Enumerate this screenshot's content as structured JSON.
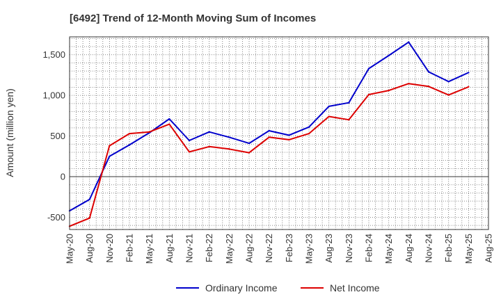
{
  "chart_data": {
    "type": "line",
    "title": "[6492]  Trend of 12-Month Moving Sum of Incomes",
    "xlabel": "",
    "ylabel": "Amount (million yen)",
    "ylim": [
      -650,
      1720
    ],
    "yticks": [
      -500,
      0,
      500,
      1000,
      1500
    ],
    "ytick_labels": [
      "-500",
      "0",
      "500",
      "1,000",
      "1,500"
    ],
    "categories": [
      "May-20",
      "Aug-20",
      "Nov-20",
      "Feb-21",
      "May-21",
      "Aug-21",
      "Nov-21",
      "Feb-22",
      "May-22",
      "Aug-22",
      "Nov-22",
      "Feb-23",
      "May-23",
      "Aug-23",
      "Nov-23",
      "Feb-24",
      "May-24",
      "Aug-24",
      "Nov-24",
      "Feb-25",
      "May-25",
      "Aug-25"
    ],
    "series": [
      {
        "name": "Ordinary Income",
        "color": "#0000cc",
        "values": [
          -420,
          -280,
          250,
          390,
          540,
          710,
          445,
          550,
          485,
          410,
          565,
          510,
          610,
          865,
          910,
          1330,
          1490,
          1655,
          1290,
          1170,
          1280,
          null
        ]
      },
      {
        "name": "Net Income",
        "color": "#dd0000",
        "values": [
          -610,
          -510,
          380,
          530,
          550,
          645,
          305,
          370,
          340,
          295,
          485,
          455,
          530,
          740,
          700,
          1010,
          1060,
          1145,
          1110,
          1005,
          1105,
          null
        ]
      }
    ],
    "grid": true,
    "legend": "bottom-center"
  }
}
